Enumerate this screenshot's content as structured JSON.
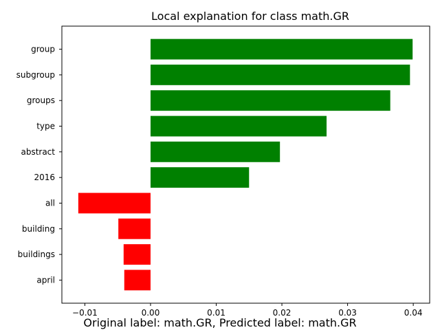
{
  "chart_data": {
    "type": "bar",
    "orientation": "horizontal",
    "title": "Local explanation for class math.GR",
    "caption": "Original label: math.GR, Predicted label: math.GR",
    "xlabel": "",
    "ylabel": "",
    "xlim": [
      -0.0135,
      0.0425
    ],
    "xticks": [
      -0.01,
      0.0,
      0.01,
      0.02,
      0.03,
      0.04
    ],
    "xtick_labels": [
      "−0.01",
      "0.00",
      "0.01",
      "0.02",
      "0.03",
      "0.04"
    ],
    "categories": [
      "group",
      "subgroup",
      "groups",
      "type",
      "abstract",
      "2016",
      "all",
      "building",
      "buildings",
      "april"
    ],
    "values": [
      0.0399,
      0.0395,
      0.0365,
      0.0268,
      0.0197,
      0.015,
      -0.011,
      -0.0049,
      -0.0041,
      -0.004
    ],
    "colors": {
      "positive": "#008000",
      "negative": "#ff0000"
    },
    "grid": false,
    "legend": "none"
  }
}
